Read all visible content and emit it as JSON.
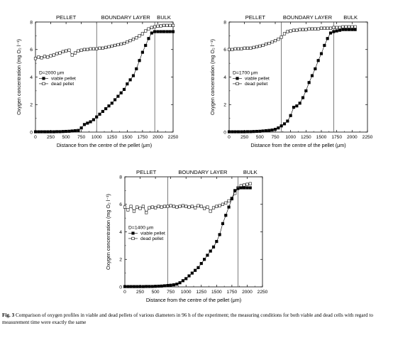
{
  "caption": {
    "label": "Fig. 3",
    "text": " Comparison of oxygen profiles in viable and dead pellets of various diameters in 96 h of the experiment; the measuring conditions for both viable and dead cells with regard to measurement time were exactly the same"
  },
  "chart_data": [
    {
      "type": "line",
      "xlabel": "Distance from the centre of the pellet (μm)",
      "ylabel": "Oxygen concentration (mg O₂ l⁻¹)",
      "xlim": [
        0,
        2250
      ],
      "ylim": [
        0,
        8
      ],
      "xticks": [
        0,
        250,
        500,
        750,
        1000,
        1250,
        1500,
        1750,
        2000,
        2250
      ],
      "yticks": [
        0,
        2,
        4,
        6,
        8
      ],
      "regions": [
        "PELLET",
        "BOUNDARY LAYER",
        "BULK"
      ],
      "boundaries": [
        1000,
        1950
      ],
      "annotation": "D=2000 μm",
      "legend_position": "middle-left",
      "series": [
        {
          "name": "viable pellet",
          "marker": "filled-square",
          "x": [
            0,
            50,
            100,
            150,
            200,
            250,
            300,
            350,
            400,
            450,
            500,
            550,
            600,
            650,
            700,
            750,
            800,
            850,
            900,
            950,
            1000,
            1050,
            1100,
            1150,
            1200,
            1250,
            1300,
            1350,
            1400,
            1450,
            1500,
            1550,
            1600,
            1650,
            1700,
            1750,
            1800,
            1850,
            1900,
            1950,
            2000,
            2050,
            2100,
            2150,
            2200,
            2250
          ],
          "values": [
            0.02,
            0.02,
            0.02,
            0.02,
            0.02,
            0.02,
            0.02,
            0.03,
            0.03,
            0.04,
            0.05,
            0.06,
            0.08,
            0.1,
            0.12,
            0.3,
            0.55,
            0.65,
            0.75,
            0.9,
            1.1,
            1.3,
            1.5,
            1.7,
            1.9,
            2.1,
            2.35,
            2.6,
            2.85,
            3.1,
            3.5,
            3.8,
            4.1,
            4.6,
            5.2,
            5.8,
            6.3,
            6.8,
            7.2,
            7.3,
            7.3,
            7.3,
            7.3,
            7.3,
            7.3,
            7.3
          ]
        },
        {
          "name": "dead pellet",
          "marker": "open-square",
          "x": [
            0,
            50,
            100,
            150,
            200,
            250,
            300,
            350,
            400,
            450,
            500,
            550,
            600,
            650,
            700,
            750,
            800,
            850,
            900,
            950,
            1000,
            1050,
            1100,
            1150,
            1200,
            1250,
            1300,
            1350,
            1400,
            1450,
            1500,
            1550,
            1600,
            1650,
            1700,
            1750,
            1800,
            1850,
            1900,
            1950,
            2000,
            2050,
            2100,
            2150,
            2200,
            2250
          ],
          "values": [
            5.35,
            5.45,
            5.4,
            5.5,
            5.45,
            5.55,
            5.6,
            5.7,
            5.75,
            5.85,
            5.9,
            5.95,
            5.6,
            5.75,
            5.9,
            5.95,
            6.0,
            6.0,
            6.05,
            6.05,
            6.05,
            6.1,
            6.1,
            6.15,
            6.2,
            6.25,
            6.3,
            6.35,
            6.4,
            6.45,
            6.55,
            6.65,
            6.75,
            6.85,
            7.0,
            7.15,
            7.35,
            7.5,
            7.6,
            7.65,
            7.7,
            7.72,
            7.75,
            7.75,
            7.75,
            7.75
          ]
        }
      ]
    },
    {
      "type": "line",
      "xlabel": "Distance from the centre of the pellet (μm)",
      "ylabel": "Oxygen concentration (mg O₂ l⁻¹)",
      "xlim": [
        0,
        2250
      ],
      "ylim": [
        0,
        8
      ],
      "xticks": [
        0,
        250,
        500,
        750,
        1000,
        1250,
        1500,
        1750,
        2000,
        2250
      ],
      "yticks": [
        0,
        2,
        4,
        6,
        8
      ],
      "regions": [
        "PELLET",
        "BOUNDARY LAYER",
        "BULK"
      ],
      "boundaries": [
        850,
        1700
      ],
      "annotation": "D=1700 μm",
      "legend_position": "middle-left",
      "series": [
        {
          "name": "viable pellet",
          "marker": "filled-square",
          "x": [
            0,
            50,
            100,
            150,
            200,
            250,
            300,
            350,
            400,
            450,
            500,
            550,
            600,
            650,
            700,
            750,
            800,
            850,
            900,
            950,
            1000,
            1050,
            1100,
            1150,
            1200,
            1250,
            1300,
            1350,
            1400,
            1450,
            1500,
            1550,
            1600,
            1650,
            1700,
            1750,
            1800,
            1850,
            1900,
            1950,
            2000,
            2050
          ],
          "values": [
            0.02,
            0.02,
            0.02,
            0.02,
            0.02,
            0.02,
            0.03,
            0.03,
            0.04,
            0.05,
            0.06,
            0.08,
            0.1,
            0.12,
            0.15,
            0.2,
            0.3,
            0.45,
            0.6,
            0.8,
            1.2,
            1.8,
            1.9,
            2.1,
            2.5,
            3.0,
            3.6,
            4.1,
            4.6,
            5.2,
            5.7,
            6.3,
            6.8,
            7.2,
            7.3,
            7.35,
            7.4,
            7.45,
            7.45,
            7.45,
            7.45,
            7.45
          ]
        },
        {
          "name": "dead pellet",
          "marker": "open-square",
          "x": [
            0,
            50,
            100,
            150,
            200,
            250,
            300,
            350,
            400,
            450,
            500,
            550,
            600,
            650,
            700,
            750,
            800,
            850,
            900,
            950,
            1000,
            1050,
            1100,
            1150,
            1200,
            1250,
            1300,
            1350,
            1400,
            1450,
            1500,
            1550,
            1600,
            1650,
            1700,
            1750,
            1800,
            1850,
            1900,
            1950,
            2000,
            2050
          ],
          "values": [
            6.0,
            6.0,
            6.05,
            6.05,
            6.05,
            6.1,
            6.1,
            6.1,
            6.15,
            6.2,
            6.25,
            6.3,
            6.4,
            6.45,
            6.55,
            6.65,
            6.75,
            6.9,
            7.15,
            7.3,
            7.35,
            7.4,
            7.4,
            7.45,
            7.45,
            7.45,
            7.5,
            7.5,
            7.5,
            7.5,
            7.55,
            7.55,
            7.55,
            7.55,
            7.6,
            7.6,
            7.6,
            7.65,
            7.65,
            7.65,
            7.65,
            7.65
          ]
        }
      ]
    },
    {
      "type": "line",
      "xlabel": "Distance from the centre of the pellet (μm)",
      "ylabel": "Oxygen concentration (mg O₂ l⁻¹)",
      "xlim": [
        0,
        2250
      ],
      "ylim": [
        0,
        8
      ],
      "xticks": [
        0,
        250,
        500,
        750,
        1000,
        1250,
        1500,
        1750,
        2000,
        2250
      ],
      "yticks": [
        0,
        2,
        4,
        6,
        8
      ],
      "regions": [
        "PELLET",
        "BOUNDARY LAYER",
        "BULK"
      ],
      "boundaries": [
        700,
        1850
      ],
      "annotation": "D=1400 μm",
      "legend_position": "middle-left",
      "series": [
        {
          "name": "viable pellet",
          "marker": "filled-square",
          "x": [
            0,
            50,
            100,
            150,
            200,
            250,
            300,
            350,
            400,
            450,
            500,
            550,
            600,
            650,
            700,
            750,
            800,
            850,
            900,
            950,
            1000,
            1050,
            1100,
            1150,
            1200,
            1250,
            1300,
            1350,
            1400,
            1450,
            1500,
            1550,
            1600,
            1650,
            1700,
            1750,
            1800,
            1850,
            1900,
            1950,
            2000,
            2050
          ],
          "values": [
            0.02,
            0.02,
            0.02,
            0.02,
            0.02,
            0.02,
            0.02,
            0.03,
            0.03,
            0.03,
            0.04,
            0.05,
            0.06,
            0.08,
            0.1,
            0.12,
            0.15,
            0.2,
            0.3,
            0.45,
            0.6,
            0.8,
            1.0,
            1.2,
            1.4,
            1.7,
            2.0,
            2.3,
            2.6,
            2.9,
            3.3,
            3.8,
            4.6,
            5.2,
            5.8,
            6.4,
            7.0,
            7.15,
            7.2,
            7.2,
            7.2,
            7.2
          ]
        },
        {
          "name": "dead pellet",
          "marker": "open-square",
          "x": [
            0,
            50,
            100,
            150,
            200,
            250,
            300,
            350,
            400,
            450,
            500,
            550,
            600,
            650,
            700,
            750,
            800,
            850,
            900,
            950,
            1000,
            1050,
            1100,
            1150,
            1200,
            1250,
            1300,
            1350,
            1400,
            1450,
            1500,
            1550,
            1600,
            1650,
            1700,
            1750,
            1800,
            1850,
            1900,
            1950,
            2000,
            2050
          ],
          "values": [
            5.8,
            5.6,
            5.85,
            5.5,
            5.8,
            5.7,
            5.85,
            5.4,
            5.75,
            5.8,
            5.75,
            5.85,
            5.8,
            5.85,
            5.85,
            5.9,
            5.85,
            5.8,
            5.85,
            5.9,
            5.85,
            5.8,
            5.85,
            5.75,
            5.9,
            5.85,
            5.7,
            5.8,
            5.5,
            5.75,
            5.85,
            5.9,
            6.0,
            6.1,
            6.25,
            6.45,
            6.8,
            7.2,
            7.35,
            7.4,
            7.45,
            7.5
          ]
        }
      ]
    }
  ]
}
